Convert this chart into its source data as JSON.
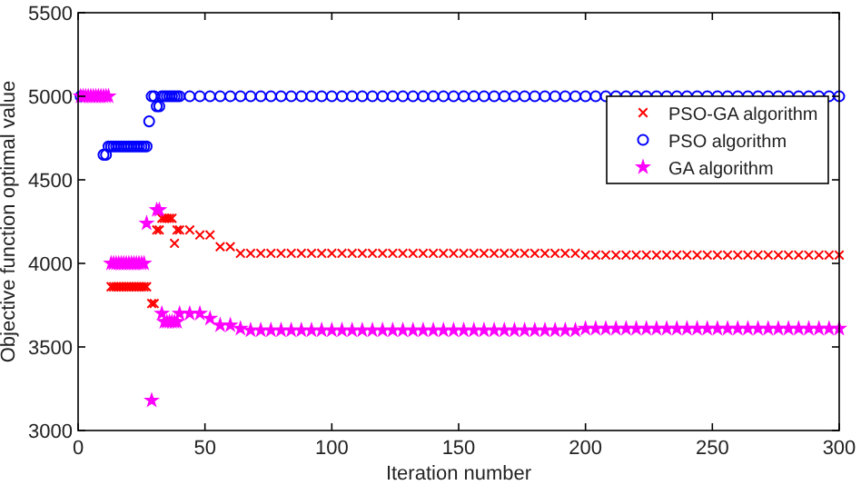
{
  "chart_data": {
    "type": "scatter",
    "xlabel": "Iteration number",
    "ylabel": "Objective function optimal value",
    "xlim": [
      0,
      300
    ],
    "ylim": [
      3000,
      5500
    ],
    "xticks": [
      0,
      50,
      100,
      150,
      200,
      250,
      300
    ],
    "yticks": [
      3000,
      3500,
      4000,
      4500,
      5000,
      5500
    ],
    "grid": false,
    "legend": "right",
    "x": [
      1,
      2,
      3,
      4,
      5,
      6,
      7,
      8,
      9,
      10,
      11,
      12,
      13,
      14,
      15,
      16,
      17,
      18,
      19,
      20,
      21,
      22,
      23,
      24,
      25,
      26,
      27,
      28,
      29,
      30,
      31,
      32,
      33,
      34,
      35,
      36,
      37,
      38,
      39,
      40,
      44,
      48,
      52,
      56,
      60,
      64,
      68,
      72,
      76,
      80,
      84,
      88,
      92,
      96,
      100,
      104,
      108,
      112,
      116,
      120,
      124,
      128,
      132,
      136,
      140,
      144,
      148,
      152,
      156,
      160,
      164,
      168,
      172,
      176,
      180,
      184,
      188,
      192,
      196,
      200,
      204,
      208,
      212,
      216,
      220,
      224,
      228,
      232,
      236,
      240,
      244,
      248,
      252,
      256,
      260,
      264,
      268,
      272,
      276,
      280,
      284,
      288,
      292,
      296,
      300
    ],
    "series": [
      {
        "name": "PSO-GA algorithm",
        "color": "#ff0000",
        "marker": "cross",
        "values": [
          null,
          null,
          null,
          null,
          null,
          null,
          null,
          null,
          null,
          null,
          null,
          null,
          3860,
          3860,
          3860,
          3860,
          3860,
          3860,
          3860,
          3860,
          3860,
          3860,
          3860,
          3860,
          3860,
          3860,
          3860,
          null,
          3760,
          3760,
          4200,
          4200,
          4270,
          4270,
          4270,
          4270,
          4270,
          4120,
          4200,
          4200,
          4200,
          4170,
          4170,
          4100,
          4100,
          4060,
          4060,
          4060,
          4060,
          4060,
          4060,
          4060,
          4060,
          4060,
          4060,
          4060,
          4060,
          4060,
          4060,
          4060,
          4060,
          4060,
          4060,
          4060,
          4060,
          4060,
          4060,
          4060,
          4060,
          4060,
          4060,
          4060,
          4060,
          4060,
          4060,
          4060,
          4060,
          4060,
          4060,
          4050,
          4050,
          4050,
          4050,
          4050,
          4050,
          4050,
          4050,
          4050,
          4050,
          4050,
          4050,
          4050,
          4050,
          4050,
          4050,
          4050,
          4050,
          4050,
          4050,
          4050,
          4050,
          4050,
          4050,
          4050,
          4050
        ]
      },
      {
        "name": "PSO algorithm",
        "color": "#0000ff",
        "marker": "circle",
        "values": [
          5000,
          null,
          null,
          null,
          null,
          null,
          null,
          null,
          null,
          4650,
          4650,
          4700,
          4700,
          4700,
          4700,
          4700,
          4700,
          4700,
          4700,
          4700,
          4700,
          4700,
          4700,
          4700,
          4700,
          4700,
          4700,
          4850,
          5000,
          5000,
          4940,
          4940,
          5000,
          5000,
          5000,
          5000,
          5000,
          5000,
          5000,
          5000,
          5000,
          5000,
          5000,
          5000,
          5000,
          5000,
          5000,
          5000,
          5000,
          5000,
          5000,
          5000,
          5000,
          5000,
          5000,
          5000,
          5000,
          5000,
          5000,
          5000,
          5000,
          5000,
          5000,
          5000,
          5000,
          5000,
          5000,
          5000,
          5000,
          5000,
          5000,
          5000,
          5000,
          5000,
          5000,
          5000,
          5000,
          5000,
          5000,
          5000,
          5000,
          5000,
          5000,
          5000,
          5000,
          5000,
          5000,
          5000,
          5000,
          5000,
          5000,
          5000,
          5000,
          5000,
          5000,
          5000,
          5000,
          5000,
          5000,
          5000,
          5000,
          5000,
          5000,
          5000,
          5000
        ]
      },
      {
        "name": "GA algorithm",
        "color": "#ff00ff",
        "marker": "star",
        "values": [
          5000,
          5000,
          5000,
          5000,
          5000,
          5000,
          5000,
          5000,
          5000,
          5000,
          5000,
          5000,
          4000,
          4000,
          4000,
          4000,
          4000,
          4000,
          4000,
          4000,
          4000,
          4000,
          4000,
          4000,
          4000,
          4000,
          4240,
          null,
          3180,
          null,
          4320,
          4320,
          3700,
          3650,
          3650,
          3650,
          3650,
          3650,
          3650,
          3700,
          3700,
          3700,
          3670,
          3630,
          3630,
          3610,
          3600,
          3600,
          3600,
          3600,
          3600,
          3600,
          3600,
          3600,
          3600,
          3600,
          3600,
          3600,
          3600,
          3600,
          3600,
          3600,
          3600,
          3600,
          3600,
          3600,
          3600,
          3600,
          3600,
          3600,
          3600,
          3600,
          3600,
          3600,
          3600,
          3600,
          3600,
          3600,
          3600,
          3610,
          3610,
          3610,
          3610,
          3610,
          3610,
          3610,
          3610,
          3610,
          3610,
          3610,
          3610,
          3610,
          3610,
          3610,
          3610,
          3610,
          3610,
          3610,
          3610,
          3610,
          3610,
          3610,
          3610,
          3610,
          3610
        ]
      }
    ]
  }
}
